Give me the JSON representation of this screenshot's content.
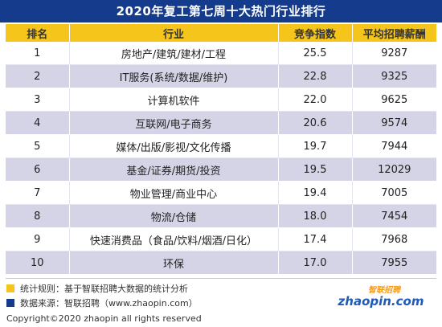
{
  "title": "2020年复工第七周十大热门行业排行",
  "headers": [
    "排名",
    "行业",
    "竞争指数",
    "平均招聘薪酬"
  ],
  "rows": [
    [
      "1",
      "房地产/建筑/建材/工程",
      "25.5",
      "9287"
    ],
    [
      "2",
      "IT服务(系统/数据/维护)",
      "22.8",
      "9325"
    ],
    [
      "3",
      "计算机软件",
      "22.0",
      "9625"
    ],
    [
      "4",
      "互联网/电子商务",
      "20.6",
      "9574"
    ],
    [
      "5",
      "媒体/出版/影视/文化传播",
      "19.7",
      "7944"
    ],
    [
      "6",
      "基金/证券/期货/投资",
      "19.5",
      "12029"
    ],
    [
      "7",
      "物业管理/商业中心",
      "19.4",
      "7005"
    ],
    [
      "8",
      "物流/仓储",
      "18.0",
      "7454"
    ],
    [
      "9",
      "快速消费品（食品/饮料/烟酒/日化）",
      "17.4",
      "7968"
    ],
    [
      "10",
      "环保",
      "17.0",
      "7955"
    ]
  ],
  "notes": {
    "rule": "统计规则：基于智联招聘大数据的统计分析",
    "source": "数据来源：智联招聘（www.zhaopin.com）"
  },
  "copyright": "Copyright©2020 zhaopin all rights reserved",
  "logo": {
    "cn_text": "智联招聘",
    "en_text": "zhaopin.com"
  },
  "colors": {
    "title_bg": "#143b8c",
    "header_bg": "#f6c51b",
    "stripe_bg": "#d4d4e6",
    "rule_square": "#f6c51b",
    "source_square": "#143b8c",
    "logo_orange": "#f39a1e",
    "logo_blue": "#1e5bb8"
  }
}
